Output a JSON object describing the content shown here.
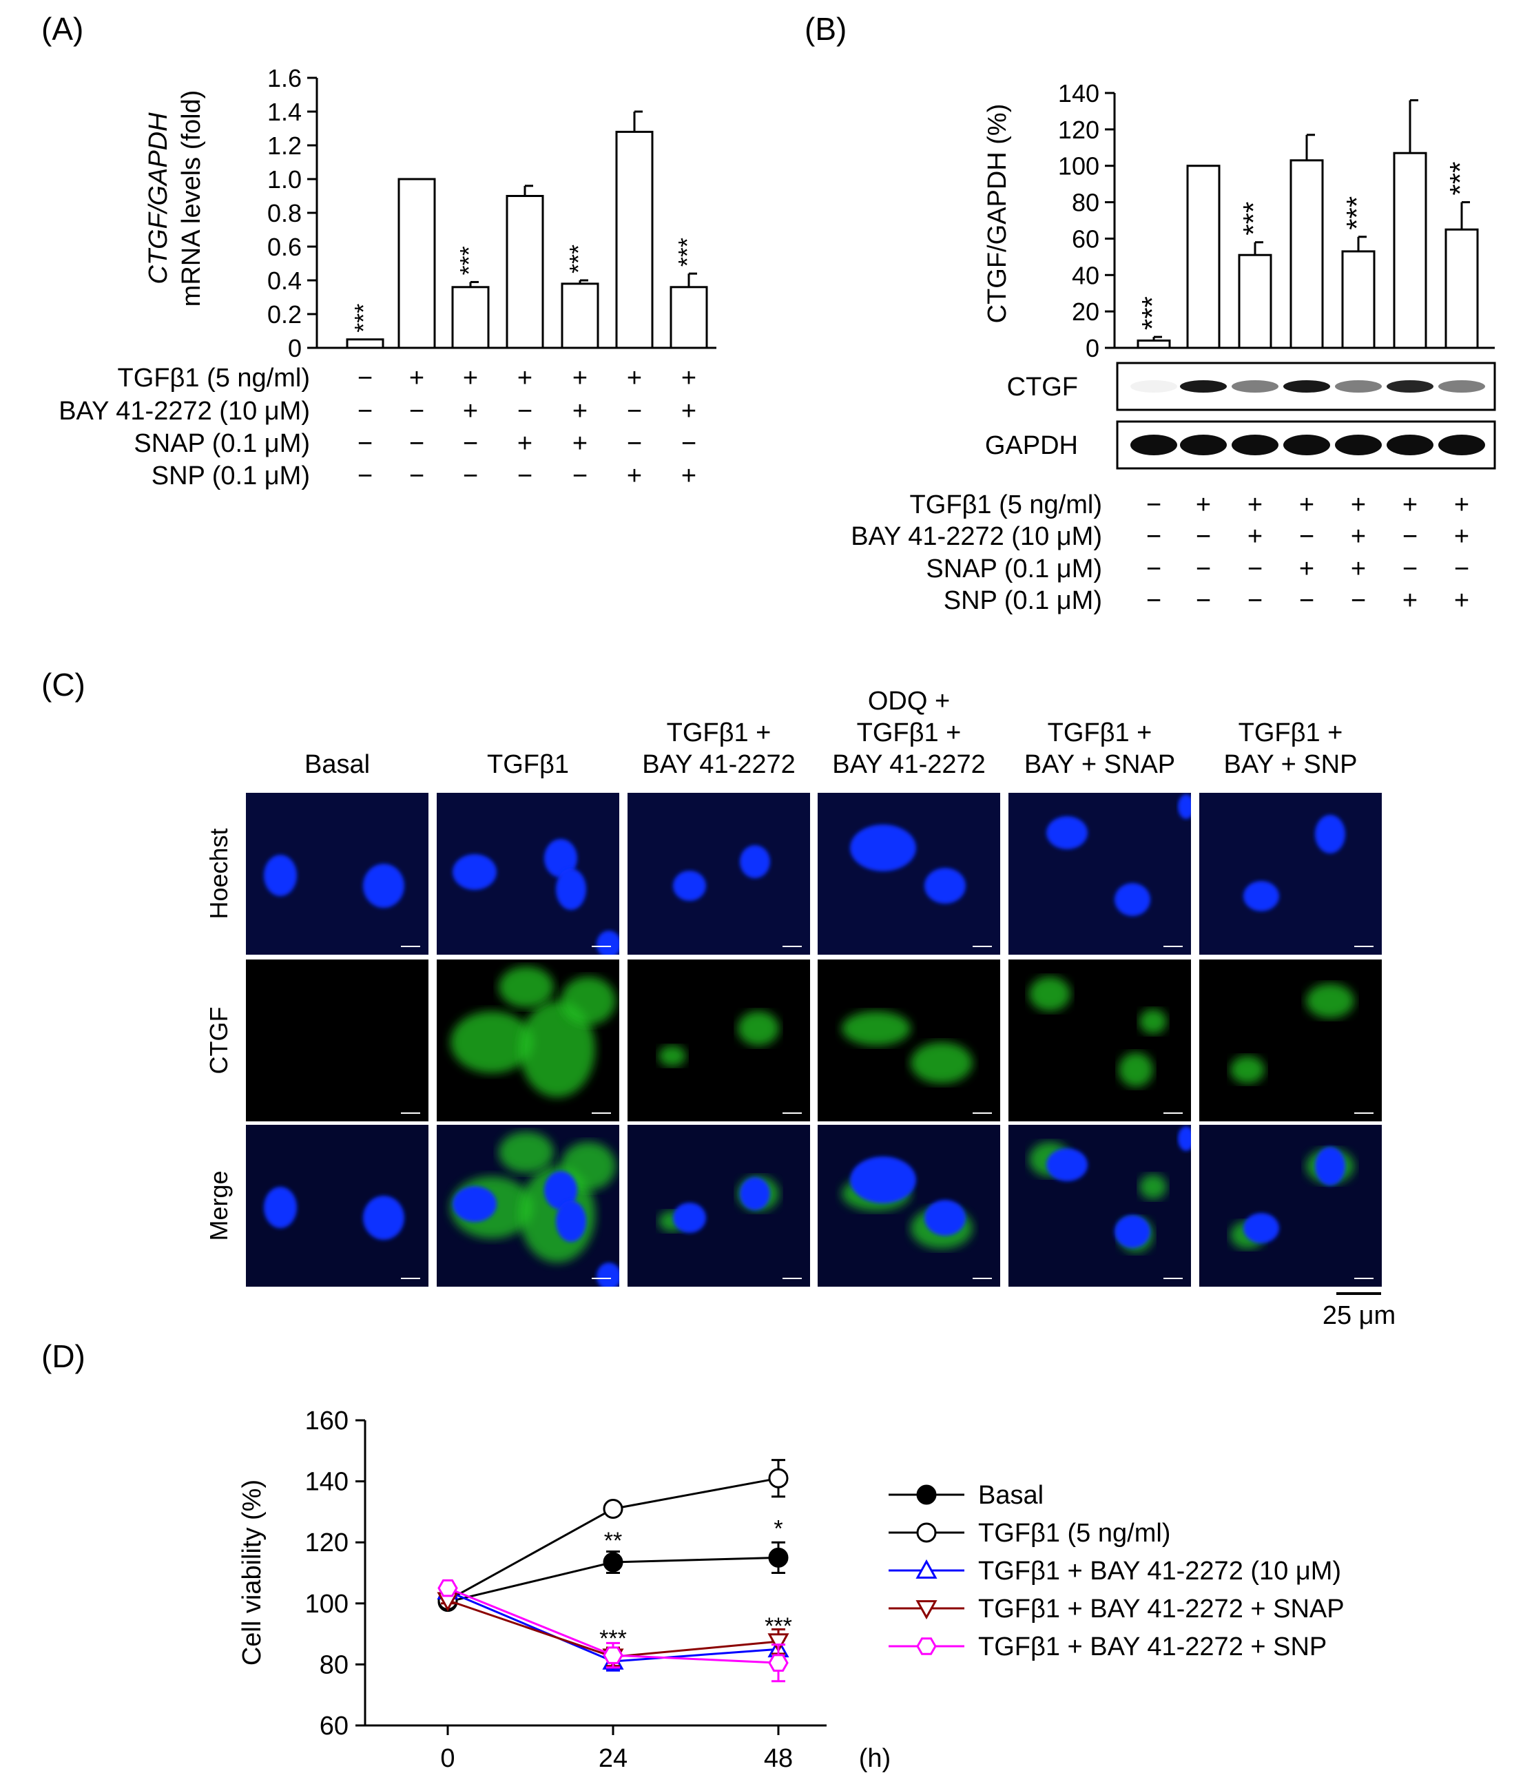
{
  "panel_labels": [
    "(A)",
    "(B)",
    "(C)",
    "(D)"
  ],
  "treatment_rows": [
    {
      "label": "TGFβ1 (5 ng/ml)",
      "signs": [
        "−",
        "+",
        "+",
        "+",
        "+",
        "+",
        "+"
      ]
    },
    {
      "label": "BAY 41-2272 (10 μM)",
      "signs": [
        "−",
        "−",
        "+",
        "−",
        "+",
        "−",
        "+"
      ]
    },
    {
      "label": "SNAP (0.1 μM)",
      "signs": [
        "−",
        "−",
        "−",
        "+",
        "+",
        "−",
        "−"
      ]
    },
    {
      "label": "SNP (0.1 μM)",
      "signs": [
        "−",
        "−",
        "−",
        "−",
        "−",
        "+",
        "+"
      ]
    }
  ],
  "blot": {
    "bands": [
      "CTGF",
      "GAPDH"
    ],
    "ctgf_intensity": [
      0.05,
      0.9,
      0.5,
      0.9,
      0.5,
      0.85,
      0.5
    ]
  },
  "micrographs": {
    "columns": [
      [
        "Basal"
      ],
      [
        "TGFβ1"
      ],
      [
        "TGFβ1 +",
        "BAY 41-2272"
      ],
      [
        "ODQ +",
        "TGFβ1 +",
        "BAY 41-2272"
      ],
      [
        "TGFβ1 +",
        "BAY + SNAP"
      ],
      [
        "TGFβ1 +",
        "BAY + SNP"
      ]
    ],
    "rows": [
      {
        "label": "Hoechst",
        "color": "#1a1aff"
      },
      {
        "label": "CTGF",
        "color": "#1a8c1a"
      },
      {
        "label": "Merge",
        "color": "#000000"
      }
    ],
    "scale_bar": "25 μm"
  },
  "chart_data": [
    {
      "type": "bar",
      "panel": "(A)",
      "ylabel_italic": "CTGF/GAPDH",
      "ylabel": "mRNA levels (fold)",
      "ylim": [
        0,
        1.6
      ],
      "yticks": [
        "0",
        "0.2",
        "0.4",
        "0.6",
        "0.8",
        "1.0",
        "1.2",
        "1.4",
        "1.6"
      ],
      "values": [
        0.05,
        1.0,
        0.36,
        0.9,
        0.38,
        1.28,
        0.36
      ],
      "errors": [
        0.0,
        0.0,
        0.03,
        0.06,
        0.02,
        0.12,
        0.08
      ],
      "significance": [
        "***",
        "",
        "***",
        "",
        "***",
        "",
        "***"
      ]
    },
    {
      "type": "bar",
      "panel": "(B)",
      "ylabel": "CTGF/GAPDH (%)",
      "ylim": [
        0,
        140
      ],
      "yticks": [
        "0",
        "20",
        "40",
        "60",
        "80",
        "100",
        "120",
        "140"
      ],
      "values": [
        4,
        100,
        51,
        103,
        53,
        107,
        65
      ],
      "errors": [
        2,
        0,
        7,
        14,
        8,
        29,
        15
      ],
      "significance": [
        "***",
        "",
        "***",
        "",
        "***",
        "",
        "***"
      ]
    },
    {
      "type": "line",
      "panel": "(D)",
      "ylabel": "Cell viability (%)",
      "xunit": "(h)",
      "x": [
        0,
        24,
        48
      ],
      "ylim": [
        60,
        160
      ],
      "yticks": [
        "60",
        "80",
        "100",
        "120",
        "140",
        "160"
      ],
      "xticks": [
        "0",
        "24",
        "48"
      ],
      "series": [
        {
          "name": "Basal",
          "color": "#000000",
          "marker": "filled-circle",
          "values": [
            100.5,
            113.5,
            115
          ],
          "errors": [
            1.5,
            3.5,
            5
          ]
        },
        {
          "name": "TGFβ1 (5 ng/ml)",
          "color": "#000000",
          "marker": "open-circle",
          "values": [
            101,
            131,
            141
          ],
          "errors": [
            1,
            1,
            6
          ]
        },
        {
          "name": "TGFβ1 + BAY 41-2272 (10 μM)",
          "color": "#0000ff",
          "marker": "triangle-up",
          "values": [
            104,
            81,
            85
          ],
          "errors": [
            1,
            3,
            3
          ]
        },
        {
          "name": "TGFβ1 + BAY 41-2272 + SNAP",
          "color": "#8b0000",
          "marker": "triangle-down",
          "values": [
            101,
            82.5,
            87.5
          ],
          "errors": [
            1,
            3,
            4
          ]
        },
        {
          "name": "TGFβ1 + BAY 41-2272 + SNP",
          "color": "#ff00ff",
          "marker": "hexagon",
          "values": [
            105,
            83,
            80.5
          ],
          "errors": [
            1,
            4,
            6
          ]
        }
      ],
      "annotations": [
        {
          "x": 24,
          "y": 118,
          "text": "**"
        },
        {
          "x": 48,
          "y": 122,
          "text": "*"
        },
        {
          "x": 24,
          "y": 86,
          "text": "***"
        },
        {
          "x": 48,
          "y": 90,
          "text": "***"
        }
      ],
      "legend_position": "right"
    }
  ]
}
